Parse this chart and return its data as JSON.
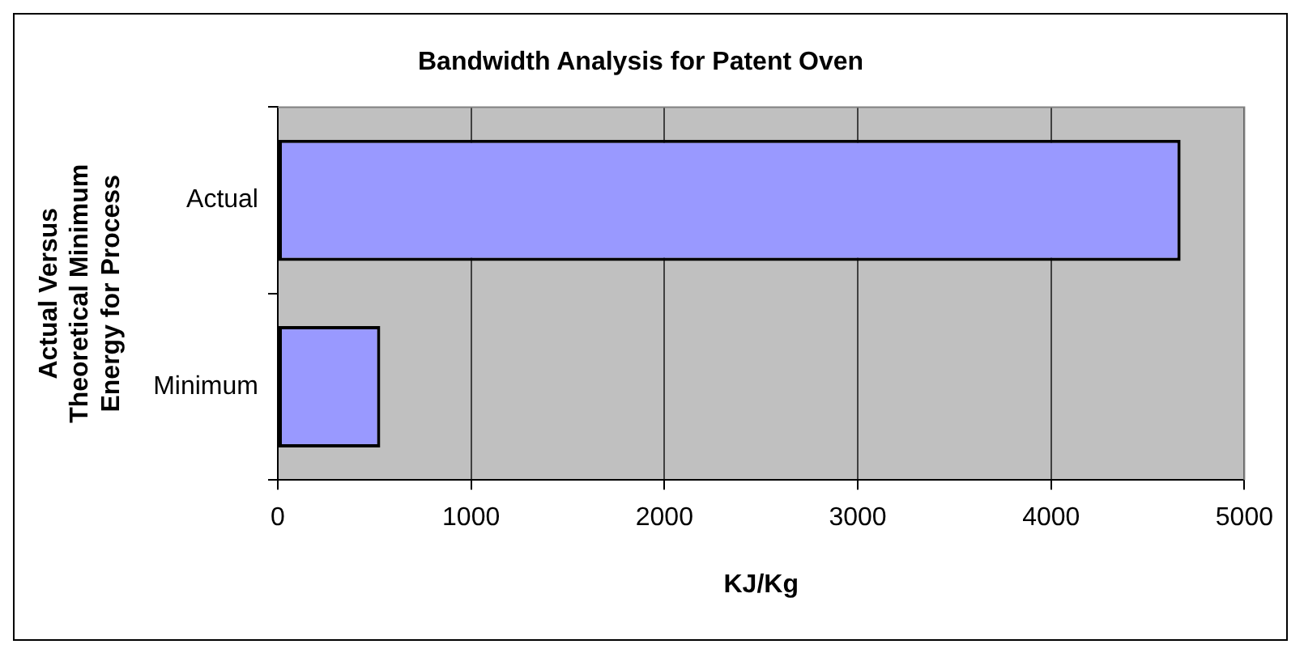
{
  "chart_data": {
    "type": "bar",
    "orientation": "horizontal",
    "title": "Bandwidth Analysis for Patent Oven",
    "xlabel": "KJ/Kg",
    "ylabel": "Actual Versus Theoretical Minimum Energy for Process",
    "categories": [
      "Actual",
      "Minimum"
    ],
    "values": [
      4670,
      530
    ],
    "color": "#9999ff",
    "xlim": [
      0,
      5000
    ],
    "xticks": [
      0,
      1000,
      2000,
      3000,
      4000,
      5000
    ],
    "grid": "x",
    "legend": false
  }
}
